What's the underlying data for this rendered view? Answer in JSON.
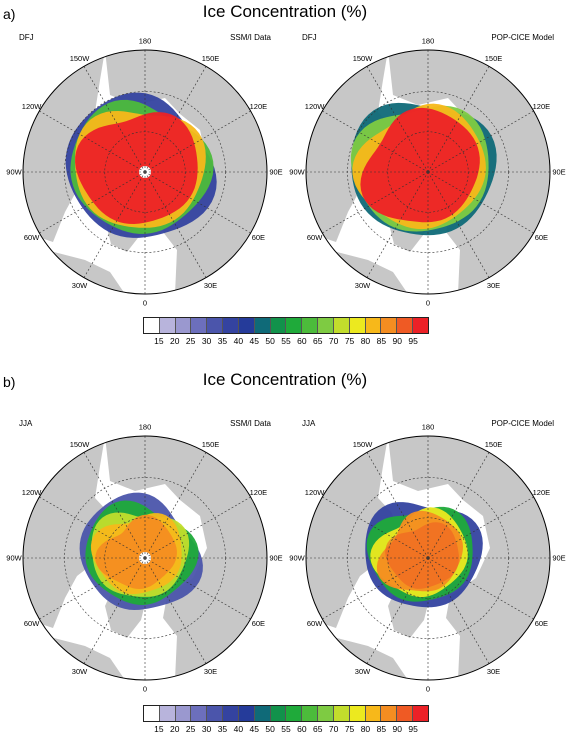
{
  "panels": [
    {
      "letter": "a)",
      "title": "Ice Concentration (%)",
      "maps": [
        {
          "season": "DFJ",
          "source": "SSM/I Data",
          "variant": "dfj-obs"
        },
        {
          "season": "DFJ",
          "source": "POP-CICE Model",
          "variant": "dfj-model"
        }
      ]
    },
    {
      "letter": "b)",
      "title": "Ice Concentration (%)",
      "maps": [
        {
          "season": "JJA",
          "source": "SSM/I Data",
          "variant": "jja-obs"
        },
        {
          "season": "JJA",
          "source": "POP-CICE Model",
          "variant": "jja-model"
        }
      ]
    }
  ],
  "longitude_labels": {
    "top": "180",
    "bottom": "0",
    "upper_left": "150W",
    "upper_right": "150E",
    "left_upper": "120W",
    "right_upper": "120E",
    "left": "90W",
    "right": "90E",
    "left_lower": "60W",
    "right_lower": "60E",
    "lower_left": "30W",
    "lower_right": "30E"
  },
  "colorbar": {
    "labels": [
      "15",
      "20",
      "25",
      "30",
      "35",
      "40",
      "45",
      "50",
      "55",
      "60",
      "65",
      "70",
      "75",
      "80",
      "85",
      "90",
      "95"
    ],
    "colors": [
      "#ffffff",
      "#b8b4dc",
      "#9a98cf",
      "#6c6fbc",
      "#4b55ab",
      "#3443a0",
      "#253b9a",
      "#0f6a78",
      "#12924b",
      "#1faa3a",
      "#4cbb3b",
      "#7ecb42",
      "#c2dd2c",
      "#ece91f",
      "#f7b81a",
      "#f48d21",
      "#ef5a24",
      "#ec2127"
    ]
  }
}
